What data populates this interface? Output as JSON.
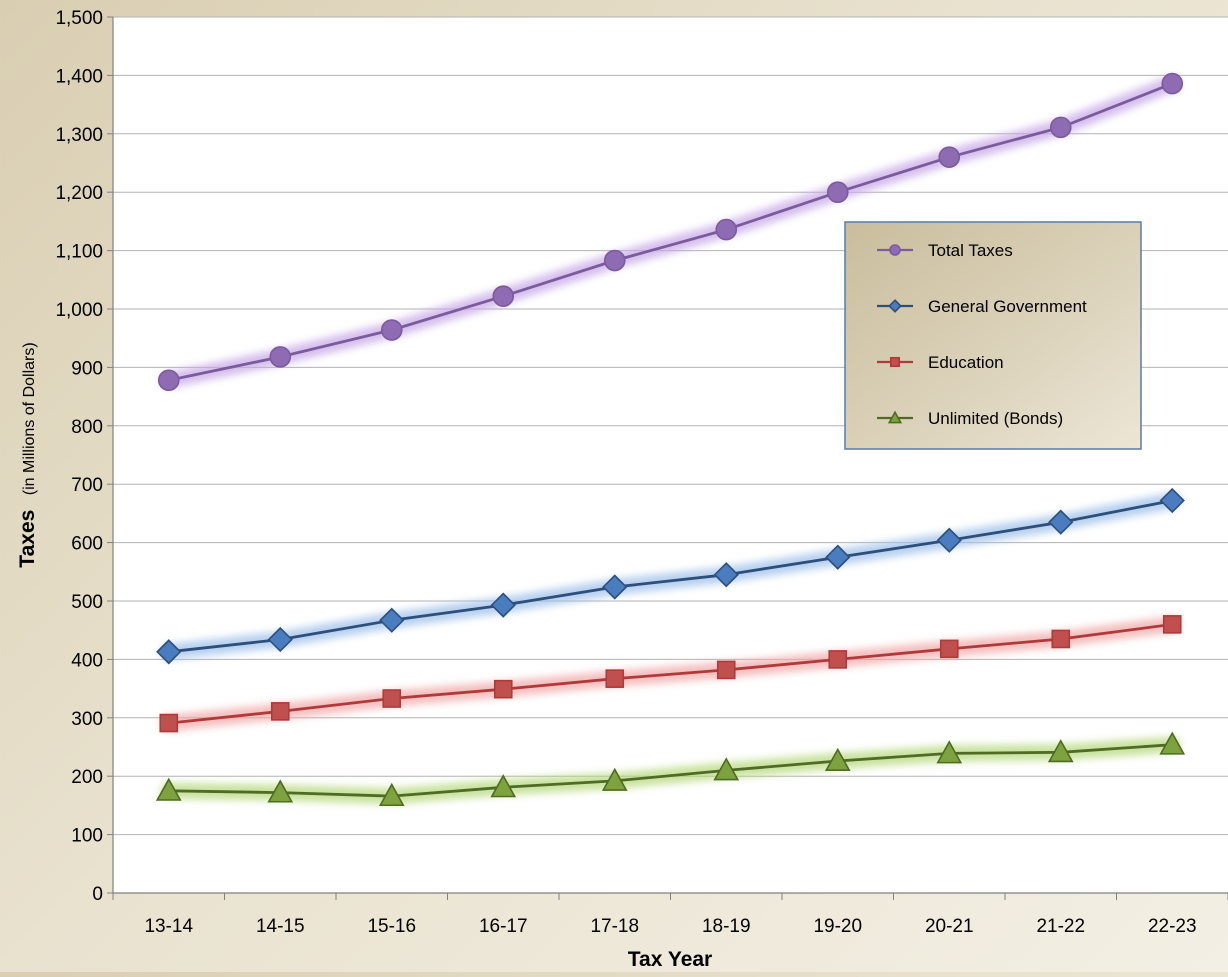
{
  "chart_data": {
    "type": "line",
    "title": "",
    "xlabel": "Tax Year",
    "ylabel": "Taxes",
    "ylabel_sub": "(in Millions of Dollars)",
    "categories": [
      "13-14",
      "14-15",
      "15-16",
      "16-17",
      "17-18",
      "18-19",
      "19-20",
      "20-21",
      "21-22",
      "22-23"
    ],
    "ylim": [
      0,
      1500
    ],
    "yticks": [
      0,
      100,
      200,
      300,
      400,
      500,
      600,
      700,
      800,
      900,
      1000,
      1100,
      1200,
      1300,
      1400,
      1500
    ],
    "ytick_labels": [
      "0",
      "100",
      "200",
      "300",
      "400",
      "500",
      "600",
      "700",
      "800",
      "900",
      "1,000",
      "1,100",
      "1,200",
      "1,300",
      "1,400",
      "1,500"
    ],
    "grid": true,
    "legend_position": "right",
    "series": [
      {
        "name": "Total Taxes",
        "marker": "circle",
        "color": "#7b5b9d",
        "marker_fill": "#8e6bb3",
        "glow": "#c7a8e6",
        "values": [
          878,
          918,
          964,
          1022,
          1083,
          1136,
          1200,
          1260,
          1311,
          1386
        ]
      },
      {
        "name": "General Government",
        "marker": "diamond",
        "color": "#2d4f7c",
        "marker_fill": "#4a7cc0",
        "glow": "#9fc0ea",
        "values": [
          413,
          434,
          467,
          493,
          524,
          545,
          575,
          604,
          635,
          672
        ]
      },
      {
        "name": "Education",
        "marker": "square",
        "color": "#b03a3a",
        "marker_fill": "#c0504d",
        "glow": "#f0a8a8",
        "values": [
          291,
          311,
          333,
          349,
          367,
          382,
          400,
          418,
          435,
          460
        ]
      },
      {
        "name": "Unlimited (Bonds)",
        "marker": "triangle",
        "color": "#4f6b24",
        "marker_fill": "#7ea33e",
        "glow": "#b5d87d",
        "values": [
          175,
          172,
          166,
          181,
          192,
          210,
          226,
          239,
          241,
          254
        ]
      }
    ]
  }
}
